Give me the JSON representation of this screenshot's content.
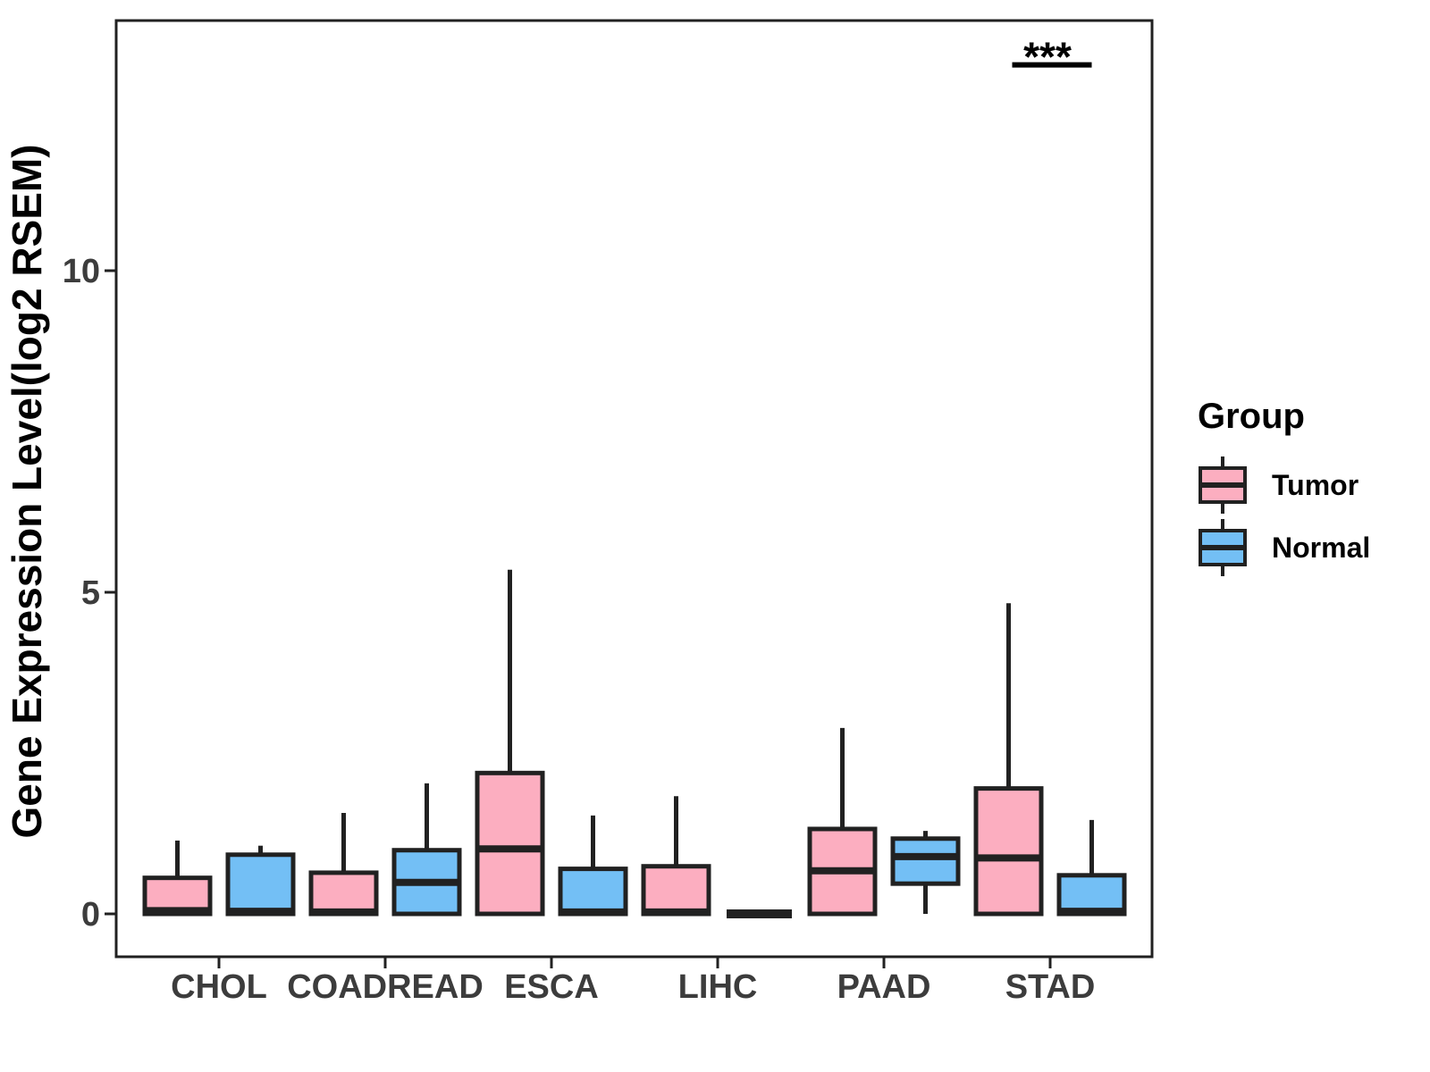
{
  "chart_data": {
    "type": "boxplot",
    "title": "",
    "xlabel": "",
    "ylabel": "Gene Expression Level(log2 RSEM)",
    "categories": [
      "CHOL",
      "COADREAD",
      "ESCA",
      "LIHC",
      "PAAD",
      "STAD"
    ],
    "yticks": [
      0,
      5,
      10
    ],
    "ylim": [
      -0.7,
      13.9
    ],
    "grid": "off",
    "legend": {
      "title": "Group",
      "position": "right",
      "entries": [
        {
          "label": "Tumor",
          "color": "#FCAEC0"
        },
        {
          "label": "Normal",
          "color": "#73BFF5"
        }
      ]
    },
    "series": [
      {
        "name": "Tumor",
        "color": "#FCAEC0",
        "boxes": [
          {
            "category": "CHOL",
            "min": 0,
            "q1": 0,
            "median": 0.05,
            "q3": 0.56,
            "max": 1.14
          },
          {
            "category": "COADREAD",
            "min": 0,
            "q1": 0,
            "median": 0.03,
            "q3": 0.64,
            "max": 1.57
          },
          {
            "category": "ESCA",
            "min": 0,
            "q1": 0,
            "median": 1.01,
            "q3": 2.19,
            "max": 5.35
          },
          {
            "category": "LIHC",
            "min": 0,
            "q1": 0,
            "median": 0.03,
            "q3": 0.74,
            "max": 1.83
          },
          {
            "category": "PAAD",
            "min": 0,
            "q1": 0,
            "median": 0.67,
            "q3": 1.32,
            "max": 2.89
          },
          {
            "category": "STAD",
            "min": 0,
            "q1": 0,
            "median": 0.87,
            "q3": 1.95,
            "max": 4.83
          }
        ]
      },
      {
        "name": "Normal",
        "color": "#73BFF5",
        "boxes": [
          {
            "category": "CHOL",
            "min": 0,
            "q1": 0,
            "median": 0.04,
            "q3": 0.92,
            "max": 1.06
          },
          {
            "category": "COADREAD",
            "min": 0,
            "q1": 0,
            "median": 0.49,
            "q3": 0.99,
            "max": 2.03
          },
          {
            "category": "ESCA",
            "min": 0,
            "q1": 0,
            "median": 0.03,
            "q3": 0.7,
            "max": 1.53
          },
          {
            "category": "LIHC",
            "min": 0,
            "q1": 0,
            "median": 0,
            "q3": 0,
            "max": 0
          },
          {
            "category": "PAAD",
            "min": 0,
            "q1": 0.47,
            "median": 0.89,
            "q3": 1.17,
            "max": 1.29
          },
          {
            "category": "STAD",
            "min": 0,
            "q1": 0,
            "median": 0.04,
            "q3": 0.6,
            "max": 1.46
          }
        ]
      }
    ],
    "annotation": {
      "text": "***",
      "category": "STAD",
      "y": 13.2
    }
  },
  "style": {
    "background": "#FFFFFF",
    "panel_border": "#212121",
    "box_stroke": "#212121",
    "axis_text": "#3C3C3C",
    "title_text": "#000000"
  }
}
